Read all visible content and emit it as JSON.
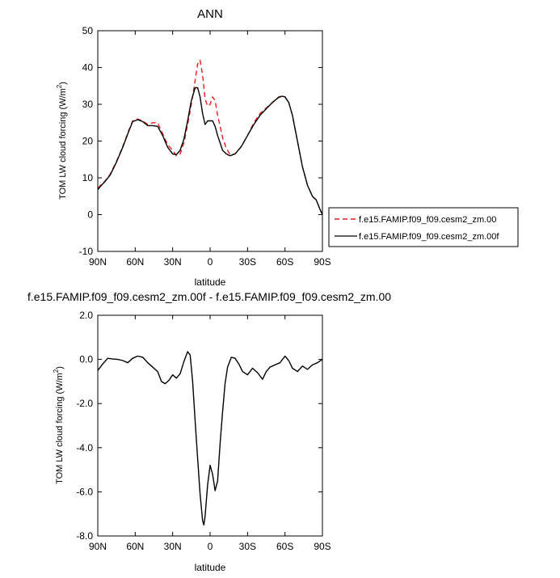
{
  "chart_data": [
    {
      "type": "line",
      "title": "ANN",
      "xlabel": "latitude",
      "ylabel_text": "TOM LW cloud forcing (W/m",
      "ylabel_sup": "2",
      "ylabel_close": ")",
      "xlim": [
        90,
        -90
      ],
      "ylim": [
        -10,
        50
      ],
      "yticks": [
        -10,
        0,
        10,
        20,
        30,
        40,
        50
      ],
      "ytick_labels": [
        "-10",
        "0",
        "10",
        "20",
        "30",
        "40",
        "50"
      ],
      "xticks": [
        90,
        60,
        30,
        0,
        -30,
        -60,
        -90
      ],
      "xtick_labels": [
        "90N",
        "60N",
        "30N",
        "0",
        "30S",
        "60S",
        "90S"
      ],
      "legend_position": "right",
      "series": [
        {
          "name": "f.e15.FAMIP.f09_f09.cesm2_zm.00",
          "color": "#e31a1c",
          "dash": "dashed",
          "x": [
            90,
            87,
            84,
            80,
            75,
            70,
            65,
            62,
            58,
            54,
            50,
            46,
            42,
            38,
            34,
            30,
            27,
            24,
            21,
            18,
            15,
            12,
            10,
            8,
            6,
            4,
            2,
            0,
            -2,
            -4,
            -6,
            -8,
            -10,
            -13,
            -16,
            -20,
            -25,
            -30,
            -35,
            -40,
            -45,
            -50,
            -55,
            -58,
            -60,
            -63,
            -66,
            -70,
            -74,
            -78,
            -82,
            -85,
            -88,
            -90
          ],
          "y": [
            7.2,
            8.2,
            9.2,
            11,
            14.5,
            18.5,
            23,
            25.5,
            26,
            25.5,
            24.5,
            25,
            25,
            22,
            19,
            17.5,
            16,
            16.5,
            19.5,
            24.5,
            30,
            36.5,
            41,
            42,
            38,
            31.5,
            29.5,
            30,
            32,
            31,
            27,
            24,
            21,
            18,
            16.3,
            16.5,
            18.5,
            21.5,
            25,
            27.5,
            29,
            30.5,
            32,
            32.3,
            32,
            30.5,
            27,
            20,
            13,
            8,
            5,
            4,
            1.5,
            0
          ]
        },
        {
          "name": "f.e15.FAMIP.f09_f09.cesm2_zm.00f",
          "color": "#000000",
          "dash": "solid",
          "x": [
            90,
            87,
            84,
            80,
            75,
            70,
            65,
            62,
            58,
            54,
            50,
            46,
            42,
            38,
            34,
            30,
            27,
            24,
            21,
            18,
            15,
            12,
            10,
            8,
            6,
            4,
            2,
            0,
            -2,
            -4,
            -6,
            -8,
            -10,
            -13,
            -16,
            -20,
            -25,
            -30,
            -35,
            -40,
            -45,
            -50,
            -55,
            -58,
            -60,
            -63,
            -66,
            -70,
            -74,
            -78,
            -82,
            -85,
            -88,
            -90
          ],
          "y": [
            6.8,
            8,
            9.1,
            10.8,
            14.3,
            18.3,
            22.8,
            25.3,
            25.8,
            25.3,
            24.2,
            24.2,
            24,
            21.5,
            18.3,
            16.5,
            16.3,
            17.5,
            20.5,
            25.5,
            31,
            34.5,
            34.5,
            32,
            27.5,
            24.5,
            25.5,
            25.5,
            25.5,
            24,
            21.5,
            19.5,
            17.5,
            16.5,
            16,
            16.5,
            18.5,
            21.5,
            24.5,
            27,
            28.8,
            30.5,
            31.9,
            32.2,
            32,
            30.5,
            27,
            20,
            13,
            8,
            5,
            4,
            1.5,
            0
          ]
        }
      ]
    },
    {
      "type": "line",
      "title": "f.e15.FAMIP.f09_f09.cesm2_zm.00f - f.e15.FAMIP.f09_f09.cesm2_zm.00",
      "xlabel": "latitude",
      "ylabel_text": "TOM LW cloud forcing (W/m",
      "ylabel_sup": "2",
      "ylabel_close": ")",
      "xlim": [
        90,
        -90
      ],
      "ylim": [
        -8,
        2
      ],
      "yticks": [
        -8,
        -6,
        -4,
        -2,
        0,
        2
      ],
      "ytick_labels": [
        "-8.0",
        "-6.0",
        "-4.0",
        "-2.0",
        "0.0",
        "2.0"
      ],
      "xticks": [
        90,
        60,
        30,
        0,
        -30,
        -60,
        -90
      ],
      "xtick_labels": [
        "90N",
        "60N",
        "30N",
        "0",
        "30S",
        "60S",
        "90S"
      ],
      "series": [
        {
          "color": "#000000",
          "dash": "solid",
          "x": [
            90,
            86,
            82,
            78,
            74,
            70,
            66,
            62,
            58,
            54,
            50,
            46,
            42,
            39,
            36,
            33,
            30,
            27,
            24,
            21,
            18,
            16,
            14,
            12,
            10,
            8,
            6,
            5,
            4,
            2,
            0,
            -2,
            -4,
            -6,
            -8,
            -10,
            -12,
            -14,
            -17,
            -20,
            -23,
            -26,
            -30,
            -34,
            -38,
            -42,
            -45,
            -48,
            -52,
            -56,
            -60,
            -63,
            -66,
            -70,
            -74,
            -78,
            -82,
            -86,
            -90
          ],
          "y": [
            -0.5,
            -0.2,
            0.05,
            0.02,
            0.0,
            -0.05,
            -0.15,
            0.05,
            0.15,
            0.1,
            -0.15,
            -0.35,
            -0.55,
            -1.0,
            -1.1,
            -0.95,
            -0.7,
            -0.85,
            -0.65,
            -0.1,
            0.35,
            0.2,
            -1.0,
            -2.8,
            -4.5,
            -6.1,
            -7.3,
            -7.5,
            -7.1,
            -5.7,
            -4.8,
            -5.2,
            -5.95,
            -5.5,
            -3.8,
            -2.4,
            -1.1,
            -0.35,
            0.1,
            0.05,
            -0.2,
            -0.55,
            -0.7,
            -0.4,
            -0.6,
            -0.9,
            -0.55,
            -0.35,
            -0.25,
            -0.15,
            0.15,
            -0.05,
            -0.4,
            -0.55,
            -0.3,
            -0.45,
            -0.25,
            -0.15,
            0.0
          ]
        }
      ]
    }
  ]
}
